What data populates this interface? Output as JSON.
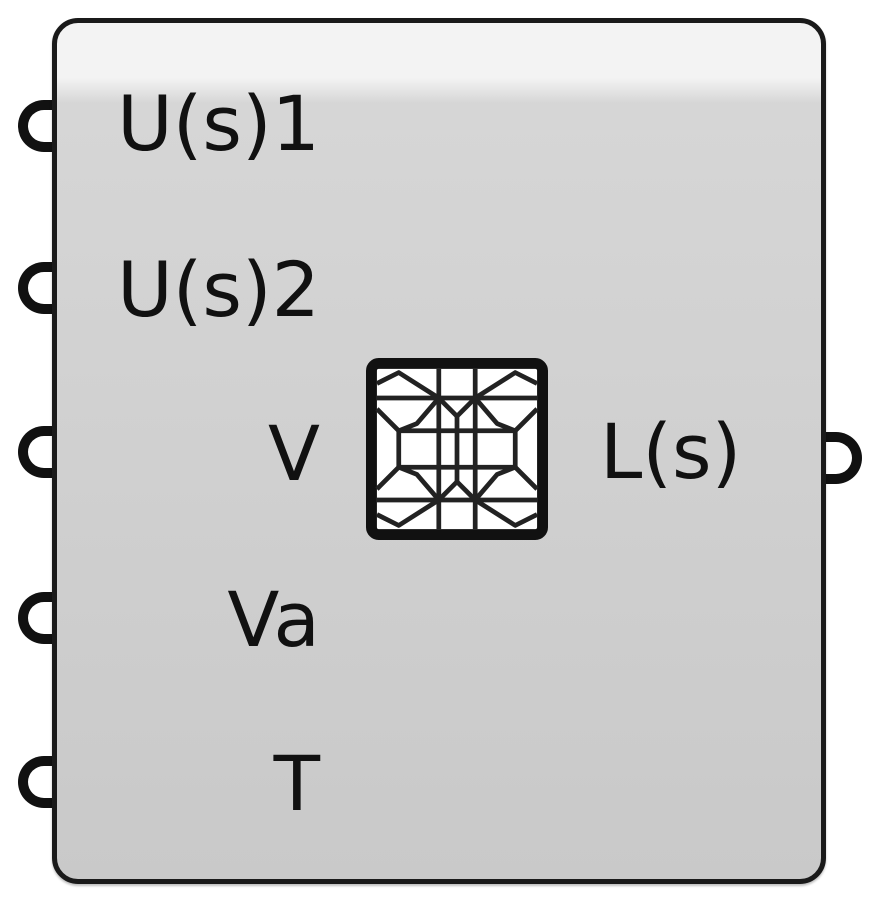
{
  "component": {
    "inputs": [
      {
        "label": "U(s)1"
      },
      {
        "label": "U(s)2"
      },
      {
        "label": "V"
      },
      {
        "label": "Va"
      },
      {
        "label": "T"
      }
    ],
    "outputs": [
      {
        "label": "L(s)"
      }
    ],
    "icon": "lattice-pattern-icon"
  },
  "colors": {
    "body": "#c9c9c9",
    "body_highlight": "#f3f3f3",
    "outline": "#1a1a1a"
  }
}
